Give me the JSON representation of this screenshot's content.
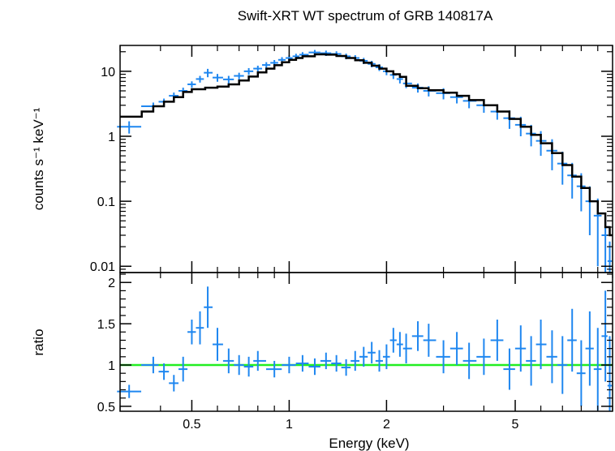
{
  "chart_data": {
    "type": "scatter",
    "title": "Swift-XRT WT spectrum of GRB 140817A",
    "xlabel": "Energy (keV)",
    "xscale": "log",
    "xlim": [
      0.3,
      10
    ],
    "xticks": [
      {
        "value": 0.5,
        "label": "0.5"
      },
      {
        "value": 1,
        "label": "1"
      },
      {
        "value": 2,
        "label": "2"
      },
      {
        "value": 5,
        "label": "5"
      }
    ],
    "colors": {
      "data": "#1f87f0",
      "model": "#000000",
      "unity": "#22ee22",
      "axes": "#000000"
    },
    "panels": [
      {
        "name": "spectrum",
        "ylabel": "counts s⁻¹ keV⁻¹",
        "yscale": "log",
        "ylim": [
          0.008,
          25
        ],
        "yticks": [
          {
            "value": 10,
            "label": "10"
          },
          {
            "value": 1,
            "label": "1"
          },
          {
            "value": 0.1,
            "label": "0.1"
          },
          {
            "value": 0.01,
            "label": "0.01"
          }
        ],
        "series": [
          {
            "style": "errorbars",
            "x": [
              0.32,
              0.38,
              0.41,
              0.44,
              0.47,
              0.5,
              0.53,
              0.56,
              0.6,
              0.65,
              0.7,
              0.75,
              0.8,
              0.85,
              0.9,
              0.95,
              1.0,
              1.05,
              1.1,
              1.2,
              1.3,
              1.4,
              1.5,
              1.6,
              1.7,
              1.8,
              1.9,
              2.0,
              2.1,
              2.2,
              2.3,
              2.5,
              2.7,
              3.0,
              3.3,
              3.6,
              4.0,
              4.4,
              4.8,
              5.2,
              5.6,
              6.0,
              6.5,
              7.0,
              7.5,
              8.0,
              8.5,
              9.0,
              9.5,
              9.8
            ],
            "y": [
              1.4,
              2.9,
              3.4,
              4.2,
              5.0,
              6.3,
              7.6,
              9.5,
              8.0,
              7.5,
              8.5,
              10.0,
              11.0,
              12.5,
              13.5,
              15.0,
              16.0,
              17.0,
              18.0,
              19.5,
              19.0,
              18.5,
              17.0,
              16.0,
              14.5,
              13.0,
              11.5,
              10.0,
              8.8,
              7.6,
              6.5,
              5.6,
              5.0,
              4.6,
              4.0,
              3.5,
              3.0,
              2.4,
              1.9,
              1.5,
              1.1,
              0.85,
              0.6,
              0.38,
              0.25,
              0.17,
              0.1,
              0.06,
              0.03,
              0.012
            ],
            "yerr": [
              0.3,
              0.4,
              0.4,
              0.5,
              0.6,
              0.7,
              0.9,
              1.4,
              1.1,
              1.0,
              1.0,
              1.2,
              1.2,
              1.3,
              1.4,
              1.5,
              1.6,
              1.6,
              1.7,
              1.8,
              1.8,
              1.8,
              1.7,
              1.7,
              1.6,
              1.5,
              1.4,
              1.3,
              1.2,
              1.1,
              1.0,
              0.9,
              0.9,
              0.9,
              0.8,
              0.8,
              0.7,
              0.6,
              0.6,
              0.5,
              0.4,
              0.35,
              0.3,
              0.2,
              0.14,
              0.1,
              0.07,
              0.05,
              0.03,
              0.012
            ]
          },
          {
            "style": "step",
            "x": [
              0.3,
              0.35,
              0.38,
              0.41,
              0.44,
              0.47,
              0.5,
              0.55,
              0.6,
              0.65,
              0.7,
              0.75,
              0.8,
              0.85,
              0.9,
              0.95,
              1.0,
              1.05,
              1.1,
              1.2,
              1.3,
              1.4,
              1.5,
              1.6,
              1.7,
              1.8,
              1.9,
              2.0,
              2.1,
              2.2,
              2.3,
              2.5,
              2.7,
              3.0,
              3.3,
              3.6,
              4.0,
              4.4,
              4.8,
              5.2,
              5.6,
              6.0,
              6.5,
              7.0,
              7.5,
              8.0,
              8.5,
              9.0,
              9.5,
              9.8,
              10.0
            ],
            "y": [
              2.0,
              2.4,
              2.9,
              3.4,
              4.0,
              4.8,
              5.3,
              5.6,
              5.8,
              6.3,
              7.2,
              8.3,
              9.6,
              11.0,
              12.4,
              13.8,
              15.0,
              16.0,
              17.0,
              18.2,
              18.0,
              17.2,
              16.0,
              14.8,
              13.5,
              12.2,
              11.0,
              10.0,
              9.0,
              8.2,
              6.0,
              5.5,
              5.1,
              4.7,
              4.2,
              3.6,
              3.0,
              2.4,
              1.85,
              1.4,
              1.05,
              0.78,
              0.55,
              0.36,
              0.24,
              0.16,
              0.1,
              0.065,
              0.04,
              0.03,
              0.03
            ]
          }
        ]
      },
      {
        "name": "ratio",
        "ylabel": "ratio",
        "yscale": "linear",
        "ylim": [
          0.44,
          2.12
        ],
        "yticks": [
          {
            "value": 2,
            "label": "2"
          },
          {
            "value": 1.5,
            "label": "1.5"
          },
          {
            "value": 1,
            "label": "1"
          },
          {
            "value": 0.5,
            "label": "0.5"
          }
        ],
        "reference_line": 1,
        "series": [
          {
            "style": "errorbars",
            "x": [
              0.32,
              0.38,
              0.41,
              0.44,
              0.47,
              0.5,
              0.53,
              0.56,
              0.6,
              0.65,
              0.7,
              0.75,
              0.8,
              0.9,
              1.0,
              1.1,
              1.2,
              1.3,
              1.4,
              1.5,
              1.6,
              1.7,
              1.8,
              1.9,
              2.0,
              2.1,
              2.2,
              2.3,
              2.5,
              2.7,
              3.0,
              3.3,
              3.6,
              4.0,
              4.4,
              4.8,
              5.2,
              5.6,
              6.0,
              6.5,
              7.0,
              7.5,
              8.0,
              8.5,
              9.0,
              9.5,
              9.8
            ],
            "y": [
              0.68,
              1.0,
              0.92,
              0.78,
              0.95,
              1.4,
              1.45,
              1.7,
              1.25,
              1.05,
              1.0,
              0.98,
              1.05,
              0.95,
              1.0,
              1.02,
              0.98,
              1.05,
              1.02,
              0.97,
              1.05,
              1.1,
              1.15,
              1.05,
              1.1,
              1.3,
              1.25,
              1.2,
              1.35,
              1.3,
              1.1,
              1.2,
              1.05,
              1.1,
              1.3,
              0.95,
              1.2,
              1.05,
              1.25,
              1.1,
              1.0,
              1.3,
              0.9,
              1.2,
              0.95,
              1.35,
              0.75
            ],
            "yerr": [
              0.08,
              0.1,
              0.1,
              0.1,
              0.15,
              0.15,
              0.2,
              0.25,
              0.2,
              0.15,
              0.12,
              0.12,
              0.12,
              0.1,
              0.1,
              0.1,
              0.1,
              0.1,
              0.1,
              0.1,
              0.12,
              0.12,
              0.13,
              0.13,
              0.15,
              0.15,
              0.15,
              0.18,
              0.18,
              0.2,
              0.2,
              0.2,
              0.22,
              0.22,
              0.25,
              0.25,
              0.28,
              0.3,
              0.3,
              0.32,
              0.35,
              0.38,
              0.4,
              0.45,
              0.5,
              0.55,
              0.6
            ]
          }
        ]
      }
    ]
  }
}
